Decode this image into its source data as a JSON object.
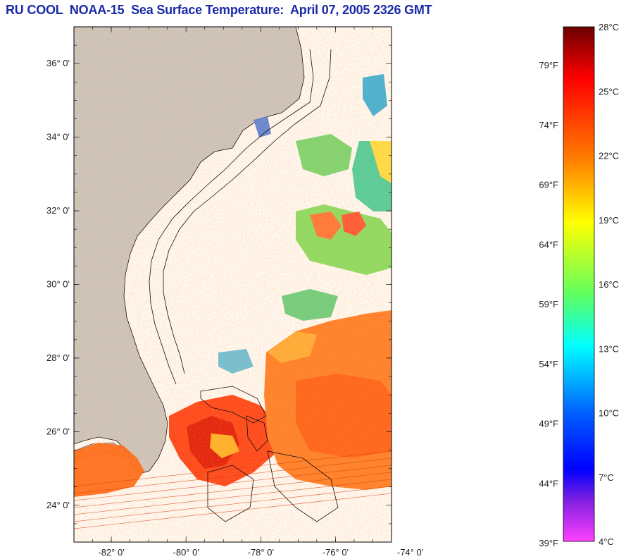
{
  "title": "RU COOL  NOAA-15  Sea Surface Temperature:  April 07, 2005 2326 GMT",
  "map": {
    "lat_range": [
      23.0,
      37.0
    ],
    "lon_range": [
      -83.0,
      -74.5
    ],
    "lat_ticks": [
      {
        "value": 36,
        "label": "36° 0'"
      },
      {
        "value": 34,
        "label": "34° 0'"
      },
      {
        "value": 32,
        "label": "32° 0'"
      },
      {
        "value": 30,
        "label": "30° 0'"
      },
      {
        "value": 28,
        "label": "28° 0'"
      },
      {
        "value": 26,
        "label": "26° 0'"
      },
      {
        "value": 24,
        "label": "24° 0'"
      }
    ],
    "lon_ticks": [
      {
        "value": -82,
        "label": "-82° 0'"
      },
      {
        "value": -80,
        "label": "-80° 0'"
      },
      {
        "value": -78,
        "label": "-78° 0'"
      },
      {
        "value": -76,
        "label": "-76° 0'"
      },
      {
        "value": -74,
        "label": "-74° 0'"
      }
    ],
    "land_color": "#c8c8c8",
    "water_color": "#ffffff"
  },
  "colorbar": {
    "celsius_labels": [
      "28°C",
      "25°C",
      "22°C",
      "19°C",
      "16°C",
      "13°C",
      "10°C",
      "7°C",
      "4°C"
    ],
    "fahrenheit_labels": [
      "79°F",
      "74°F",
      "69°F",
      "64°F",
      "59°F",
      "54°F",
      "49°F",
      "44°F",
      "39°F"
    ],
    "colors_top_to_bottom": [
      "#7a0000",
      "#ff0000",
      "#ff8000",
      "#ffff00",
      "#80ff40",
      "#00ffff",
      "#0060ff",
      "#0000ff",
      "#8020ff",
      "#ff40ff"
    ]
  }
}
